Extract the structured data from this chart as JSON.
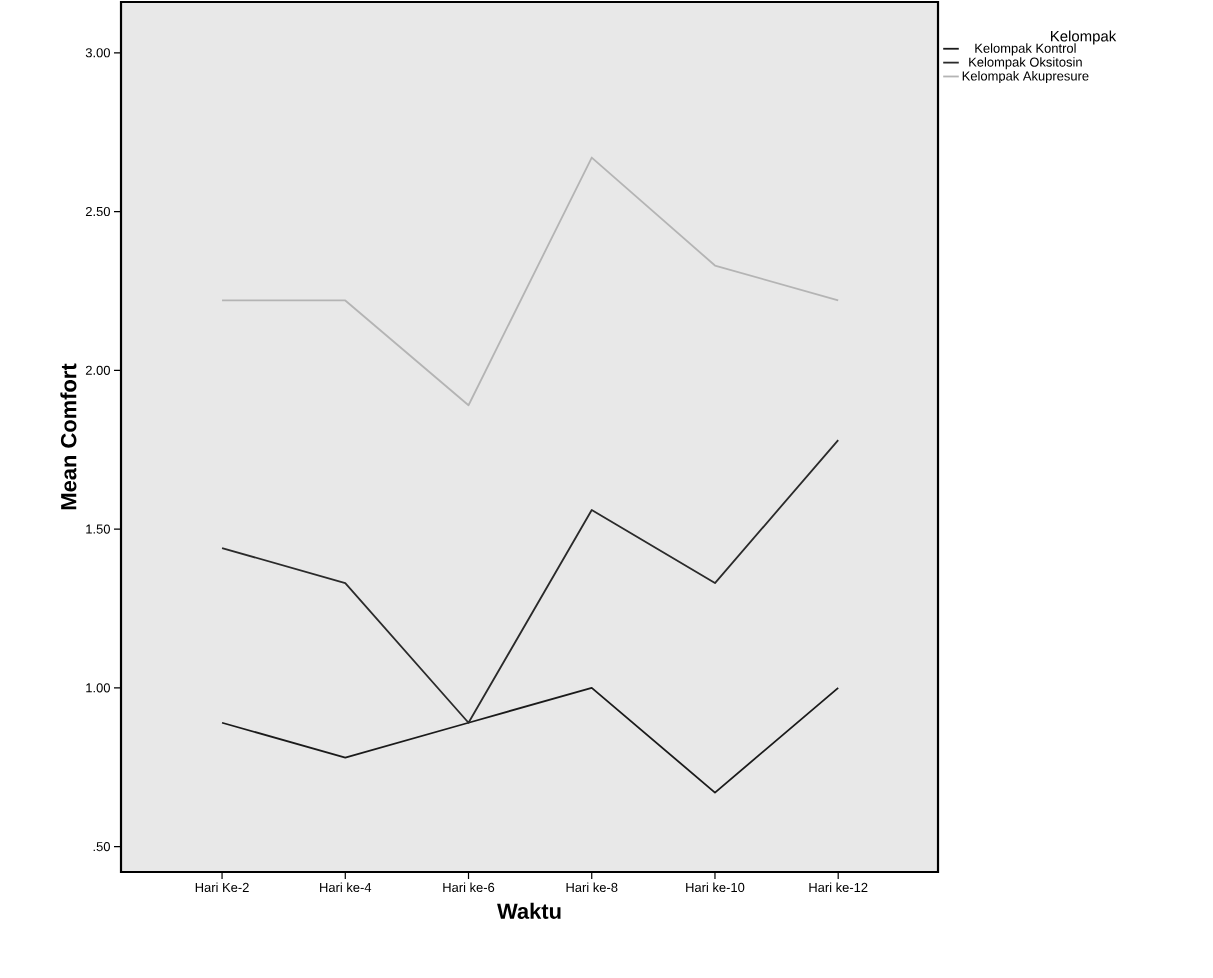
{
  "chart_data": {
    "type": "line",
    "xlabel": "Waktu",
    "ylabel": "Mean Comfort",
    "legend_title": "Kelompak",
    "categories": [
      "Hari Ke-2",
      "Hari ke-4",
      "Hari ke-6",
      "Hari ke-8",
      "Hari ke-10",
      "Hari ke-12"
    ],
    "series": [
      {
        "name": "Kelompak Kontrol",
        "color": "#1a1a1a",
        "values": [
          0.89,
          0.78,
          0.89,
          1.0,
          0.67,
          1.0
        ]
      },
      {
        "name": "Kelompak Oksitosin",
        "color": "#2a2a2a",
        "values": [
          1.44,
          1.33,
          0.89,
          1.56,
          1.33,
          1.78
        ]
      },
      {
        "name": "Kelompak Akupresure",
        "color": "#b4b4b4",
        "values": [
          2.22,
          2.22,
          1.89,
          2.67,
          2.33,
          2.22
        ]
      }
    ],
    "ylim": [
      0.42,
      3.16
    ],
    "yticks": [
      {
        "value": 0.5,
        "label": ".50"
      },
      {
        "value": 1.0,
        "label": "1.00"
      },
      {
        "value": 1.5,
        "label": "1.50"
      },
      {
        "value": 2.0,
        "label": "2.00"
      },
      {
        "value": 2.5,
        "label": "2.50"
      },
      {
        "value": 3.0,
        "label": "3.00"
      }
    ],
    "legend": "top right",
    "grid": false,
    "marker": "none",
    "line_style": "solid"
  }
}
